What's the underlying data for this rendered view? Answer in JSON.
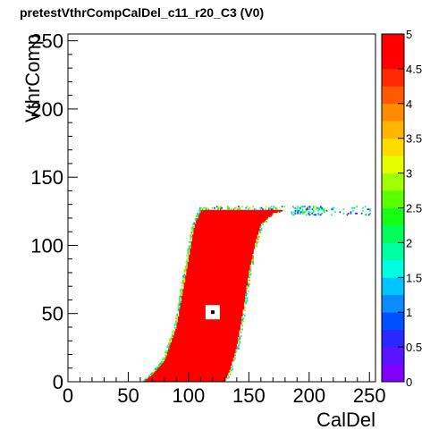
{
  "chart_data": {
    "type": "heatmap",
    "title": "pretestVthrCompCalDel_c11_r20_C3 (V0)",
    "xlabel": "CalDel",
    "ylabel": "VthrComp",
    "xlim": [
      0,
      255
    ],
    "ylim": [
      0,
      255
    ],
    "x_ticks": [
      "0",
      "50",
      "100",
      "150",
      "200",
      "250"
    ],
    "y_ticks": [
      "0",
      "50",
      "100",
      "150",
      "200",
      "250"
    ],
    "zlim": [
      0,
      5
    ],
    "z_ticks": [
      "0",
      "0.5",
      "1",
      "1.5",
      "2",
      "2.5",
      "3",
      "3.5",
      "4",
      "4.5",
      "5"
    ],
    "palette": [
      "#7f00ff",
      "#5a14ff",
      "#2828ff",
      "#0050ff",
      "#0a8cff",
      "#00c3ff",
      "#00ffe1",
      "#00ffa0",
      "#00ff5a",
      "#14ff14",
      "#5aff00",
      "#a0ff00",
      "#e6ff00",
      "#ffdc00",
      "#ffb400",
      "#ff8c00",
      "#ff5a00",
      "#ff2800",
      "#ff0000",
      "#ff0000"
    ],
    "grid": false,
    "saturated_region": {
      "value": 5,
      "plateau_y": 125,
      "left_edge": [
        [
          63,
          0
        ],
        [
          70,
          5
        ],
        [
          80,
          15
        ],
        [
          90,
          40
        ],
        [
          95,
          65
        ],
        [
          100,
          90
        ],
        [
          105,
          115
        ],
        [
          110,
          125
        ]
      ],
      "right_edge": [
        [
          130,
          0
        ],
        [
          135,
          10
        ],
        [
          140,
          25
        ],
        [
          145,
          50
        ],
        [
          150,
          80
        ],
        [
          155,
          100
        ],
        [
          160,
          115
        ],
        [
          170,
          123
        ],
        [
          185,
          127
        ]
      ]
    },
    "tail": {
      "y_min": 122,
      "y_max": 128,
      "x_min": 185,
      "x_max": 250
    },
    "marker": {
      "x": 120,
      "y": 51
    }
  }
}
